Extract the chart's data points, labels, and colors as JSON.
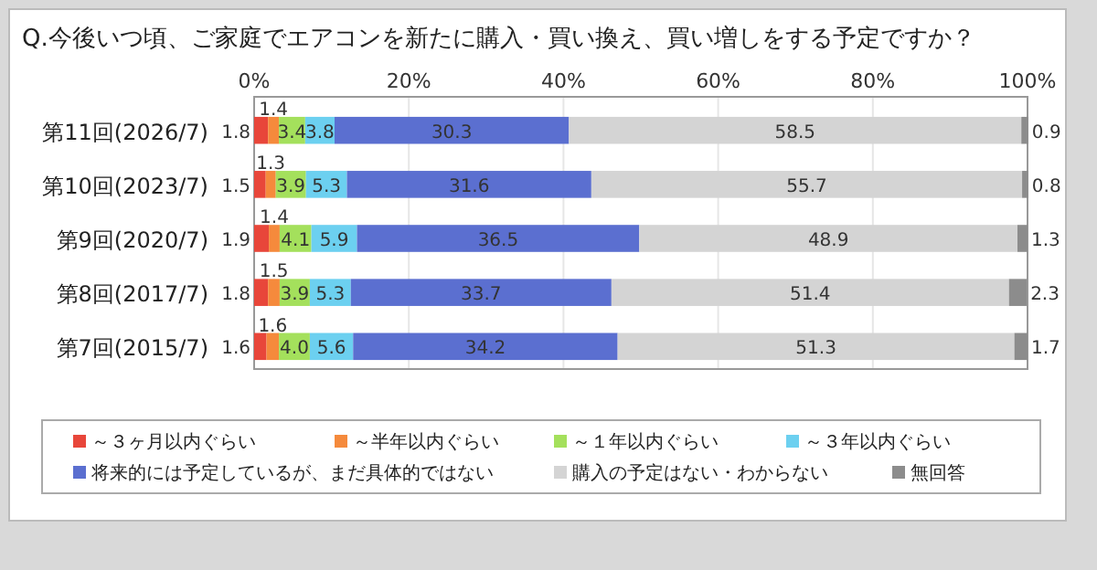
{
  "chart_data": {
    "type": "bar",
    "orientation": "horizontal",
    "stacked": true,
    "title": "Q.今後いつ頃、ご家庭でエアコンを新たに購入・買い換え、買い増しをする予定ですか？",
    "categories": [
      "第11回(2026/7)",
      "第10回(2023/7)",
      "第9回(2020/7)",
      "第8回(2017/7)",
      "第7回(2015/7)"
    ],
    "series": [
      {
        "name": "～３ヶ月以内ぐらい",
        "color": "#e8463a",
        "values": [
          1.8,
          1.5,
          1.9,
          1.8,
          1.6
        ],
        "value_labels": [
          "1.8",
          "1.5",
          "1.9",
          "1.8",
          "1.6"
        ]
      },
      {
        "name": "～半年以内ぐらい",
        "color": "#f58a3c",
        "values": [
          1.4,
          1.3,
          1.4,
          1.5,
          1.6
        ],
        "value_labels": [
          "1.4",
          "1.3",
          "1.4",
          "1.5",
          "1.6"
        ]
      },
      {
        "name": "～１年以内ぐらい",
        "color": "#a4e05c",
        "values": [
          3.4,
          3.9,
          4.1,
          3.9,
          4.0
        ],
        "value_labels": [
          "3.4",
          "3.9",
          "4.1",
          "3.9",
          "4.0"
        ]
      },
      {
        "name": "～３年以内ぐらい",
        "color": "#6cd0f0",
        "values": [
          3.8,
          5.3,
          5.9,
          5.3,
          5.6
        ],
        "value_labels": [
          "3.8",
          "5.3",
          "5.9",
          "5.3",
          "5.6"
        ]
      },
      {
        "name": "将来的には予定しているが、まだ具体的ではない",
        "color": "#5b6fd0",
        "values": [
          30.3,
          31.6,
          36.5,
          33.7,
          34.2
        ],
        "value_labels": [
          "30.3",
          "31.6",
          "36.5",
          "33.7",
          "34.2"
        ]
      },
      {
        "name": "購入の予定はない・わからない",
        "color": "#d4d4d4",
        "values": [
          58.5,
          55.7,
          48.9,
          51.4,
          51.3
        ],
        "value_labels": [
          "58.5",
          "55.7",
          "48.9",
          "51.4",
          "51.3"
        ]
      },
      {
        "name": "無回答",
        "color": "#8c8c8c",
        "values": [
          0.9,
          0.8,
          1.3,
          2.3,
          1.7
        ],
        "value_labels": [
          "0.9",
          "0.8",
          "1.3",
          "2.3",
          "1.7"
        ]
      }
    ],
    "xlim": [
      0,
      100
    ],
    "xticks": [
      {
        "value": 0,
        "label": "0%"
      },
      {
        "value": 20,
        "label": "20%"
      },
      {
        "value": 40,
        "label": "40%"
      },
      {
        "value": 60,
        "label": "60%"
      },
      {
        "value": 80,
        "label": "80%"
      },
      {
        "value": 100,
        "label": "100%"
      }
    ],
    "grid": "x",
    "legend": "bottom"
  }
}
